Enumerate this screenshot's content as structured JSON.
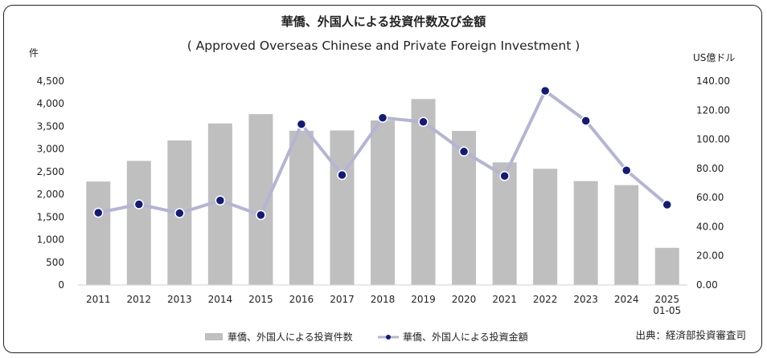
{
  "chart_data": {
    "type": "bar+line",
    "title": "華僑、外国人による投資件数及び金額",
    "subtitle": "( Approved Overseas Chinese and Private Foreign Investment )",
    "ylabel_left": "件",
    "ylabel_right": "US億ドル",
    "categories": [
      "2011",
      "2012",
      "2013",
      "2014",
      "2015",
      "2016",
      "2017",
      "2018",
      "2019",
      "2020",
      "2021",
      "2022",
      "2023",
      "2024",
      "2025\n01-05"
    ],
    "y_left": {
      "min": 0,
      "max": 4500,
      "step": 500,
      "ticks": [
        "0",
        "500",
        "1,000",
        "1,500",
        "2,000",
        "2,500",
        "3,000",
        "3,500",
        "4,000",
        "4,500"
      ]
    },
    "y_right": {
      "min": 0,
      "max": 140,
      "step": 20,
      "ticks": [
        "0.00",
        "20.00",
        "40.00",
        "60.00",
        "80.00",
        "100.00",
        "120.00",
        "140.00"
      ]
    },
    "series": [
      {
        "name": "華僑、外国人による投資件数",
        "type": "bar",
        "axis": "left",
        "color": "#bfbfbf",
        "values": [
          2283,
          2738,
          3189,
          3565,
          3770,
          3404,
          3411,
          3631,
          4104,
          3400,
          2705,
          2564,
          2292,
          2204,
          820
        ]
      },
      {
        "name": "華僑、外国人による投資金額",
        "type": "line",
        "axis": "right",
        "color": "#b4b4d4",
        "marker_color": "#141a78",
        "values": [
          49.6,
          55.4,
          49.3,
          58.0,
          48.0,
          110.4,
          75.5,
          114.8,
          112.0,
          91.6,
          74.8,
          133.3,
          112.7,
          78.7,
          55.1
        ]
      }
    ],
    "legend_position": "bottom-center",
    "grid": false
  },
  "source_note": "出典：経済部投資審査司"
}
